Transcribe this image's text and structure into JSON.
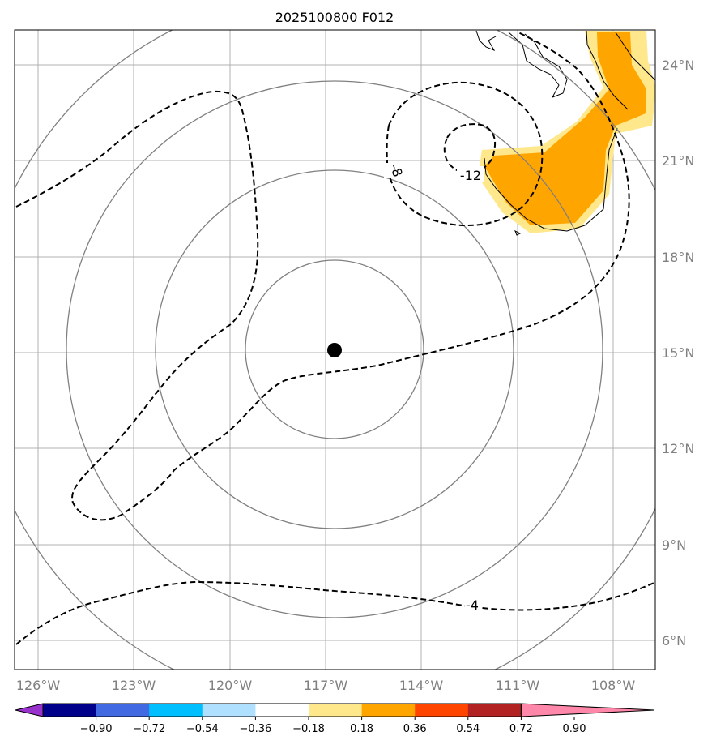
{
  "title": "2025100800 F012",
  "lat_labels": [
    "24°N",
    "21°N",
    "18°N",
    "15°N",
    "12°N",
    "9°N",
    "6°N"
  ],
  "lon_labels": [
    "126°W",
    "123°W",
    "120°W",
    "117°W",
    "114°W",
    "111°W",
    "108°W"
  ],
  "contour_labels": [
    "-8",
    "-12",
    "-4"
  ],
  "colorbar": {
    "ticks": [
      "−0.90",
      "−0.72",
      "−0.54",
      "−0.36",
      "−0.18",
      "0.18",
      "0.36",
      "0.54",
      "0.72",
      "0.90"
    ],
    "colors": [
      "#9932cc",
      "#00008b",
      "#4169e1",
      "#00bfff",
      "#b0e0ff",
      "#ffffff",
      "#ffe88c",
      "#ffa500",
      "#ff4500",
      "#b22222",
      "#ff88aa"
    ]
  },
  "storm_center": {
    "lat": 15.0,
    "lon": -116.8
  },
  "colors": {
    "grid": "#b0b0b0",
    "range_rings": "#808080",
    "coastline": "#000000",
    "shade_light": "#ffe88c",
    "shade_mid": "#ffa500"
  }
}
